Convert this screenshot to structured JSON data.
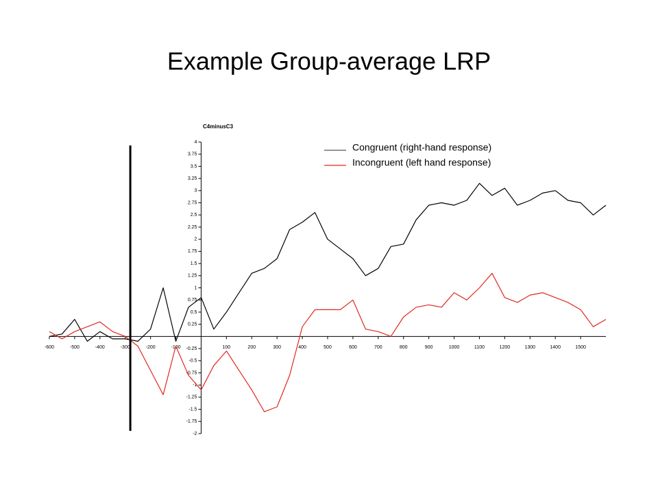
{
  "chart_data": {
    "type": "line",
    "title": "Example Group-average LRP",
    "y_label": "C4minusC3",
    "x": [
      -600,
      -550,
      -500,
      -450,
      -400,
      -350,
      -300,
      -250,
      -200,
      -150,
      -100,
      -50,
      0,
      50,
      100,
      150,
      200,
      250,
      300,
      350,
      400,
      450,
      500,
      550,
      600,
      650,
      700,
      750,
      800,
      850,
      900,
      950,
      1000,
      1050,
      1100,
      1150,
      1200,
      1250,
      1300,
      1350,
      1400,
      1450,
      1500,
      1550,
      1600
    ],
    "series": [
      {
        "name": "Congruent (right-hand response)",
        "color": "#000000",
        "values": [
          0.0,
          0.05,
          0.35,
          -0.1,
          0.1,
          -0.05,
          -0.05,
          -0.1,
          0.15,
          1.0,
          -0.1,
          0.6,
          0.8,
          0.15,
          0.5,
          0.9,
          1.3,
          1.4,
          1.6,
          2.2,
          2.35,
          2.55,
          2.0,
          1.8,
          1.6,
          1.25,
          1.4,
          1.85,
          1.9,
          2.4,
          2.7,
          2.75,
          2.7,
          2.8,
          3.15,
          2.9,
          3.05,
          2.7,
          2.8,
          2.95,
          3.0,
          2.8,
          2.75,
          2.5,
          2.7
        ]
      },
      {
        "name": "Incongruent (left hand response)",
        "color": "#e0281e",
        "values": [
          0.1,
          -0.05,
          0.1,
          0.2,
          0.3,
          0.1,
          0.0,
          -0.2,
          -0.7,
          -1.2,
          -0.2,
          -0.8,
          -1.1,
          -0.6,
          -0.3,
          -0.7,
          -1.1,
          -1.55,
          -1.45,
          -0.8,
          0.2,
          0.55,
          0.55,
          0.55,
          0.75,
          0.15,
          0.1,
          0.0,
          0.4,
          0.6,
          0.65,
          0.6,
          0.9,
          0.75,
          1.0,
          1.3,
          0.8,
          0.7,
          0.85,
          0.9,
          0.8,
          0.7,
          0.55,
          0.2,
          0.35
        ]
      }
    ],
    "xlim": [
      -600,
      1600
    ],
    "ylim": [
      -2,
      4
    ],
    "xticks": [
      -600,
      -500,
      -400,
      -300,
      -200,
      -100,
      100,
      200,
      300,
      400,
      500,
      600,
      700,
      800,
      900,
      1000,
      1100,
      1200,
      1300,
      1400,
      1500
    ],
    "yticks": [
      -2,
      -1.75,
      -1.5,
      -1.25,
      -1,
      -0.75,
      -0.5,
      -0.25,
      0.25,
      0.5,
      0.75,
      1,
      1.25,
      1.5,
      1.75,
      2,
      2.25,
      2.5,
      2.75,
      3,
      3.25,
      3.5,
      3.75,
      4
    ],
    "vline": -280
  }
}
